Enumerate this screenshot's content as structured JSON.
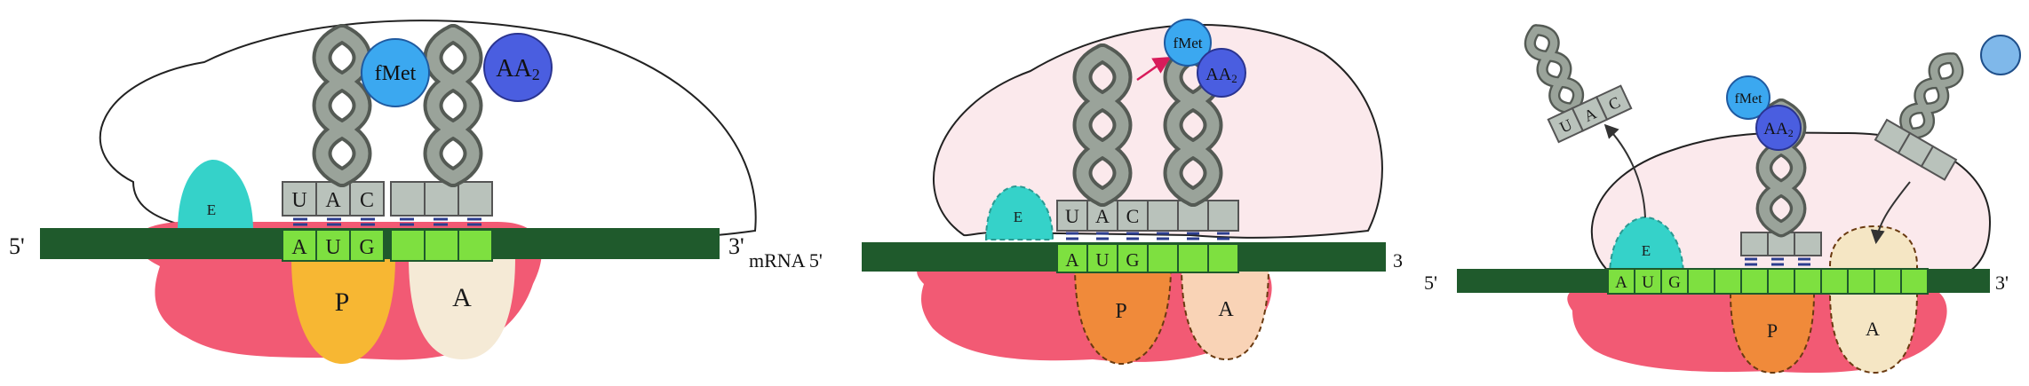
{
  "colors": {
    "mrna": "#1f5a2c",
    "codon_fill": "#7ee040",
    "large_subunit_fill": "#fbe9ec",
    "small_subunit": "#f25a74",
    "e_site": "#35d2c9",
    "p_site_1": "#f7b733",
    "p_site_2": "#f08a3a",
    "a_site": "#f5ead6",
    "fmet": "#3ba8f0",
    "aa2": "#4a5ee0",
    "trna_body": "#9aa39a",
    "anticodon_box": "#b9c2bb"
  },
  "panel1": {
    "five_prime": "5'",
    "three_prime": "3'",
    "site_e": "E",
    "site_p": "P",
    "site_a": "A",
    "codons": [
      "A",
      "U",
      "G"
    ],
    "anticodons": [
      "U",
      "A",
      "C"
    ],
    "fmet_label": "fMet",
    "aa2_label": "AA",
    "aa2_sub": "2"
  },
  "panel2": {
    "mrna_label": "mRNA 5'",
    "three_prime": "3",
    "site_e": "E",
    "site_p": "P",
    "site_a": "A",
    "codons": [
      "A",
      "U",
      "G"
    ],
    "anticodons": [
      "U",
      "A",
      "C"
    ],
    "fmet_label": "fMet",
    "aa2_label": "AA",
    "aa2_sub": "2"
  },
  "panel3": {
    "five_prime": "5'",
    "three_prime": "3'",
    "site_e": "E",
    "site_p": "P",
    "site_a": "A",
    "codons": [
      "A",
      "U",
      "G"
    ],
    "released_anticodons": [
      "U",
      "A",
      "C"
    ],
    "fmet_label": "fMet",
    "aa2_label": "AA",
    "aa2_sub": "2"
  }
}
